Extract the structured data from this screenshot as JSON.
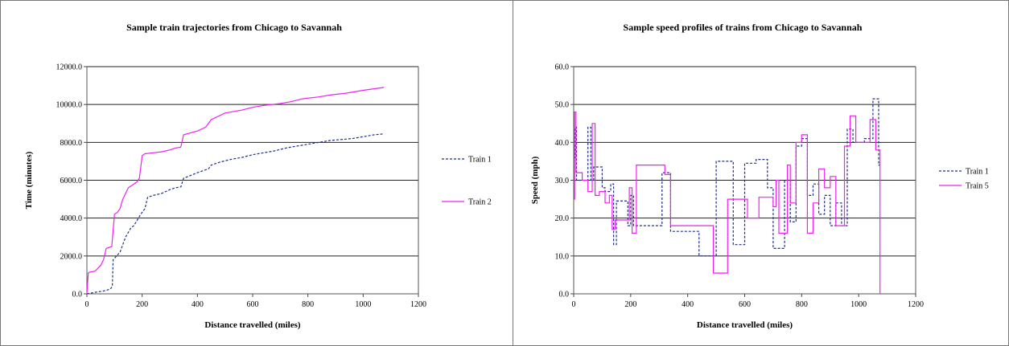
{
  "chart_data": [
    {
      "type": "line",
      "title": "Sample train  trajectories from  Chicago to Savannah",
      "xlabel": "Distance travelled (miles)",
      "ylabel": "Time (minutes)",
      "xlim": [
        0,
        1200
      ],
      "ylim": [
        0,
        12000
      ],
      "xticks": [
        "0",
        "200",
        "400",
        "600",
        "800",
        "1000",
        "1200"
      ],
      "yticks": [
        "0.0",
        "2000.0",
        "4000.0",
        "6000.0",
        "8000.0",
        "10000.0",
        "12000.0"
      ],
      "grid": "horizontal",
      "legend_position": "right",
      "series": [
        {
          "name": "Train 1",
          "color": "#1f2f8a",
          "dash": true,
          "x": [
            0,
            30,
            60,
            85,
            92,
            95,
            120,
            130,
            140,
            160,
            170,
            195,
            210,
            220,
            240,
            270,
            300,
            320,
            340,
            350,
            400,
            440,
            450,
            480,
            520,
            560,
            600,
            640,
            680,
            720,
            760,
            800,
            840,
            880,
            920,
            960,
            1000,
            1040,
            1075
          ],
          "y": [
            0,
            80,
            150,
            250,
            400,
            1800,
            2200,
            2600,
            3000,
            3500,
            3600,
            4200,
            4500,
            5100,
            5200,
            5300,
            5500,
            5600,
            5650,
            6100,
            6400,
            6600,
            6800,
            6950,
            7100,
            7200,
            7350,
            7450,
            7550,
            7700,
            7800,
            7900,
            8000,
            8100,
            8150,
            8200,
            8300,
            8400,
            8450
          ]
        },
        {
          "name": "Train 2",
          "color": "#ee22ee",
          "dash": false,
          "x": [
            0,
            5,
            10,
            30,
            50,
            60,
            70,
            90,
            100,
            110,
            120,
            130,
            150,
            160,
            180,
            190,
            200,
            210,
            240,
            270,
            300,
            320,
            340,
            350,
            400,
            430,
            450,
            500,
            560,
            600,
            640,
            700,
            740,
            780,
            840,
            880,
            940,
            1000,
            1075
          ],
          "y": [
            0,
            1100,
            1150,
            1200,
            1500,
            1800,
            2400,
            2500,
            4200,
            4300,
            4500,
            5000,
            5600,
            5700,
            5900,
            6100,
            7300,
            7400,
            7450,
            7500,
            7600,
            7700,
            7750,
            8400,
            8600,
            8800,
            9200,
            9550,
            9700,
            9850,
            9950,
            10050,
            10150,
            10300,
            10400,
            10500,
            10600,
            10750,
            10900
          ]
        }
      ]
    },
    {
      "type": "line",
      "title": "Sample  speed profiles of trains from  Chicago to Savannah",
      "xlabel": "Distance travelled (miles)",
      "ylabel": "Speed (mph)",
      "xlim": [
        0,
        1200
      ],
      "ylim": [
        0,
        60
      ],
      "xticks": [
        "0",
        "200",
        "400",
        "600",
        "800",
        "1000",
        "1200"
      ],
      "yticks": [
        "0.0",
        "10.0",
        "20.0",
        "30.0",
        "40.0",
        "50.0",
        "60.0"
      ],
      "grid": "horizontal",
      "legend_position": "right",
      "series": [
        {
          "name": "Train 1",
          "color": "#1f2f8a",
          "dash": true,
          "x": [
            0,
            5,
            10,
            30,
            50,
            60,
            70,
            80,
            100,
            110,
            130,
            140,
            150,
            170,
            190,
            200,
            210,
            270,
            310,
            330,
            340,
            420,
            440,
            480,
            500,
            540,
            560,
            580,
            600,
            620,
            640,
            660,
            680,
            700,
            720,
            740,
            750,
            760,
            770,
            780,
            790,
            800,
            810,
            820,
            830,
            840,
            850,
            860,
            870,
            880,
            890,
            900,
            910,
            920,
            930,
            940,
            950,
            960,
            970,
            980,
            1000,
            1020,
            1040,
            1050,
            1060,
            1070,
            1075
          ],
          "y": [
            36,
            44,
            30,
            30,
            44,
            30,
            33.5,
            33.5,
            28,
            27,
            29,
            13,
            24.5,
            24.5,
            18,
            26,
            18,
            18,
            32,
            32,
            16.5,
            16.5,
            10,
            10,
            35,
            35,
            13,
            13,
            34.5,
            34.5,
            35.5,
            35.5,
            28,
            12,
            12,
            30,
            30,
            19,
            19,
            39,
            39,
            41,
            41,
            26,
            26,
            29,
            29,
            21,
            21,
            26,
            26,
            18,
            18,
            24,
            24,
            18,
            18,
            43.5,
            43.5,
            40,
            40,
            41,
            41,
            51.5,
            51.5,
            34,
            34
          ]
        },
        {
          "name": "Train 5",
          "color": "#ee22ee",
          "dash": false,
          "x": [
            0,
            3,
            8,
            15,
            30,
            50,
            65,
            75,
            90,
            110,
            125,
            135,
            145,
            180,
            195,
            205,
            220,
            300,
            320,
            340,
            440,
            490,
            540,
            570,
            610,
            650,
            680,
            700,
            710,
            720,
            740,
            750,
            760,
            780,
            790,
            800,
            810,
            820,
            830,
            840,
            850,
            860,
            870,
            880,
            890,
            900,
            910,
            920,
            940,
            950,
            960,
            970,
            980,
            990,
            1000,
            1040,
            1055,
            1060,
            1070,
            1075
          ],
          "y": [
            25,
            48,
            32,
            32,
            30,
            27,
            45,
            26,
            27,
            24,
            26,
            17,
            19.5,
            19.5,
            28,
            16,
            34,
            34,
            31.5,
            18,
            18,
            5.5,
            25,
            25,
            20,
            25.5,
            25.5,
            23,
            30,
            16,
            16,
            34,
            24,
            40,
            40,
            42,
            42,
            16,
            16,
            24,
            24,
            33,
            33,
            28,
            28,
            31,
            31,
            18,
            18,
            39,
            39,
            47,
            47,
            40,
            40,
            46,
            46,
            38,
            38,
            0
          ]
        }
      ]
    }
  ]
}
